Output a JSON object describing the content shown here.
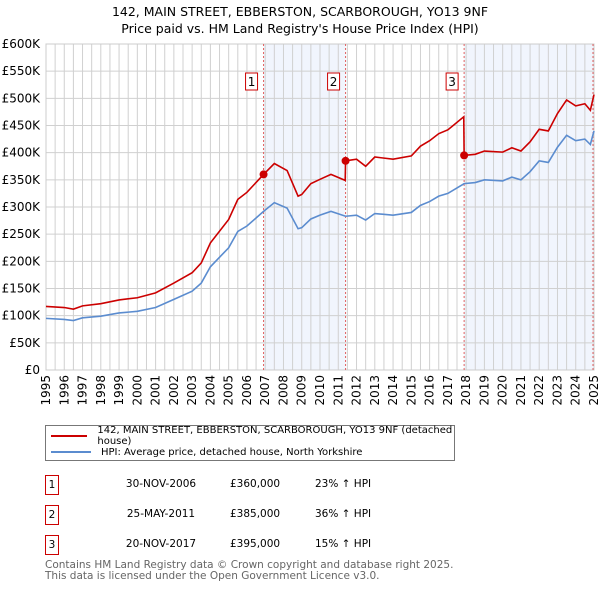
{
  "chart_data": {
    "type": "line",
    "title": "142, MAIN STREET, EBBERSTON, SCARBOROUGH, YO13 9NF",
    "subtitle": "Price paid vs. HM Land Registry's House Price Index (HPI)",
    "xlim": [
      1995,
      2025
    ],
    "ylim": [
      0,
      600000
    ],
    "x_ticks": [
      "1995",
      "1996",
      "1997",
      "1998",
      "1999",
      "2000",
      "2001",
      "2002",
      "2003",
      "2004",
      "2005",
      "2006",
      "2007",
      "2008",
      "2009",
      "2010",
      "2011",
      "2012",
      "2013",
      "2014",
      "2015",
      "2016",
      "2017",
      "2018",
      "2019",
      "2020",
      "2021",
      "2022",
      "2023",
      "2024",
      "2025"
    ],
    "y_ticks": [
      {
        "v": 0,
        "label": "£0"
      },
      {
        "v": 50000,
        "label": "£50K"
      },
      {
        "v": 100000,
        "label": "£100K"
      },
      {
        "v": 150000,
        "label": "£150K"
      },
      {
        "v": 200000,
        "label": "£200K"
      },
      {
        "v": 250000,
        "label": "£250K"
      },
      {
        "v": 300000,
        "label": "£300K"
      },
      {
        "v": 350000,
        "label": "£350K"
      },
      {
        "v": 400000,
        "label": "£400K"
      },
      {
        "v": 450000,
        "label": "£450K"
      },
      {
        "v": 500000,
        "label": "£500K"
      },
      {
        "v": 550000,
        "label": "£550K"
      },
      {
        "v": 600000,
        "label": "£600K"
      }
    ],
    "grid": true,
    "series": [
      {
        "name": "142, MAIN STREET, EBBERSTON, SCARBOROUGH, YO13 9NF (detached house)",
        "color": "#cc0000",
        "x": [
          1995,
          1996,
          1996.5,
          1997,
          1998,
          1999,
          2000,
          2001,
          2002,
          2003,
          2003.5,
          2004,
          2005,
          2005.5,
          2006,
          2006.91,
          2007.5,
          2008.2,
          2008.8,
          2009,
          2009.5,
          2010,
          2010.6,
          2011.38,
          2011.4,
          2012,
          2012.5,
          2013,
          2014,
          2015,
          2015.5,
          2016,
          2016.5,
          2017,
          2017.87,
          2017.89,
          2018.5,
          2019,
          2020,
          2020.5,
          2021,
          2021.5,
          2022,
          2022.5,
          2023,
          2023.5,
          2024,
          2024.5,
          2024.8,
          2025
        ],
        "y": [
          117000,
          115000,
          112000,
          118000,
          122000,
          129000,
          133000,
          142000,
          160000,
          179000,
          197000,
          234000,
          277000,
          314000,
          327000,
          360000,
          380000,
          367000,
          320000,
          323000,
          343000,
          351000,
          360000,
          349000,
          385000,
          388000,
          375000,
          392000,
          388000,
          394000,
          412000,
          422000,
          435000,
          442000,
          466000,
          395000,
          397000,
          403000,
          401000,
          409000,
          403000,
          420000,
          443000,
          440000,
          472000,
          497000,
          486000,
          490000,
          478000,
          507000
        ]
      },
      {
        "name": "HPI: Average price, detached house, North Yorkshire",
        "color": "#5b8ccf",
        "x": [
          1995,
          1996,
          1996.5,
          1997,
          1998,
          1999,
          2000,
          2001,
          2002,
          2003,
          2003.5,
          2004,
          2005,
          2005.5,
          2006,
          2006.91,
          2007.5,
          2008.2,
          2008.8,
          2009,
          2009.5,
          2010,
          2010.6,
          2011.4,
          2012,
          2012.5,
          2013,
          2014,
          2015,
          2015.5,
          2016,
          2016.5,
          2017,
          2017.89,
          2018.5,
          2019,
          2020,
          2020.5,
          2021,
          2021.5,
          2022,
          2022.5,
          2023,
          2023.5,
          2024,
          2024.5,
          2024.8,
          2025
        ],
        "y": [
          95000,
          93000,
          91000,
          96000,
          99000,
          105000,
          108000,
          115000,
          130000,
          145000,
          160000,
          190000,
          225000,
          255000,
          265000,
          292000,
          308000,
          298000,
          260000,
          262000,
          278000,
          285000,
          292000,
          283000,
          285000,
          276000,
          288000,
          285000,
          290000,
          303000,
          310000,
          320000,
          325000,
          343000,
          345000,
          350000,
          348000,
          355000,
          350000,
          365000,
          385000,
          382000,
          410000,
          432000,
          422000,
          425000,
          415000,
          440000
        ]
      }
    ],
    "sales": [
      {
        "label": "1",
        "x": 2006.91,
        "price": 360000,
        "date": "30-NOV-2006",
        "price_text": "£360,000",
        "hpi_text": "23% ↑ HPI"
      },
      {
        "label": "2",
        "x": 2011.4,
        "price": 385000,
        "date": "25-MAY-2011",
        "price_text": "£385,000",
        "hpi_text": "36% ↑ HPI"
      },
      {
        "label": "3",
        "x": 2017.89,
        "price": 395000,
        "date": "20-NOV-2017",
        "price_text": "£395,000",
        "hpi_text": "15% ↑ HPI"
      }
    ],
    "shaded_ranges": [
      [
        2006.91,
        2011.4
      ],
      [
        2017.89,
        2025
      ]
    ],
    "legend_placement": "below"
  },
  "footer": {
    "line1": "Contains HM Land Registry data © Crown copyright and database right 2025.",
    "line2": "This data is licensed under the Open Government Licence v3.0."
  }
}
